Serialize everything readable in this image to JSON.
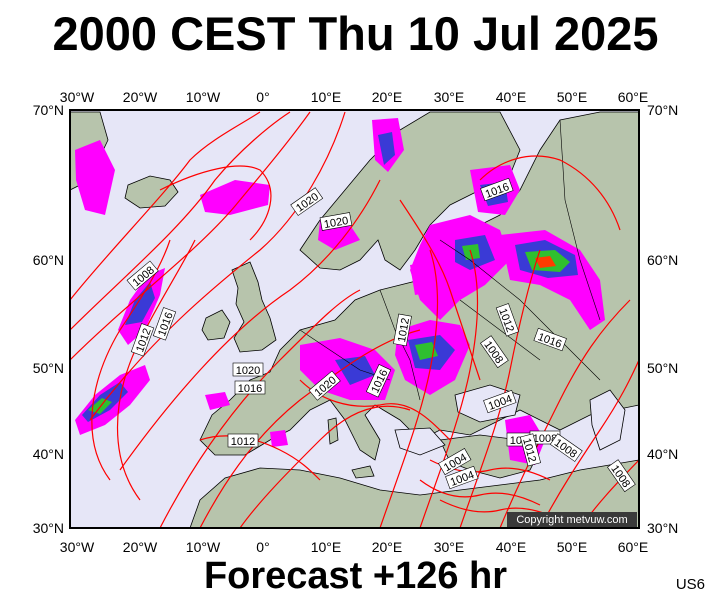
{
  "header": {
    "title": "2000 CEST Thu 10 Jul 2025"
  },
  "footer": {
    "forecast_label": "Forecast +126 hr",
    "model_code": "US6"
  },
  "map": {
    "lon_labels_top": [
      "30°W",
      "20°W",
      "10°W",
      "0°",
      "10°E",
      "20°E",
      "30°E",
      "40°E",
      "50°E",
      "60°E"
    ],
    "lon_labels_bottom": [
      "30°W",
      "20°W",
      "10°W",
      "0°",
      "10°E",
      "20°E",
      "30°E",
      "40°E",
      "50°E",
      "60°E"
    ],
    "lat_labels_left": [
      "70°N",
      "60°N",
      "50°N",
      "40°N",
      "30°N"
    ],
    "lat_labels_right": [
      "70°N",
      "60°N",
      "50°N",
      "40°N",
      "30°N"
    ],
    "isobar_labels": [
      "1020",
      "1020",
      "1016",
      "1008",
      "1012",
      "1016",
      "1012",
      "1012",
      "1008",
      "1016",
      "1020",
      "1016",
      "1020",
      "1016",
      "1004",
      "1012",
      "1012",
      "1008",
      "1008",
      "1004",
      "1004",
      "1008",
      "1012"
    ],
    "copyright": "Copyright metvuw.com",
    "colors": {
      "ocean": "#e6e6f7",
      "land": "#b7c4ac",
      "isobar": "#ff0000",
      "rain_light": "#ff00ff",
      "rain_medium": "#3a3ad6",
      "rain_heavy": "#2fbf2f"
    }
  }
}
